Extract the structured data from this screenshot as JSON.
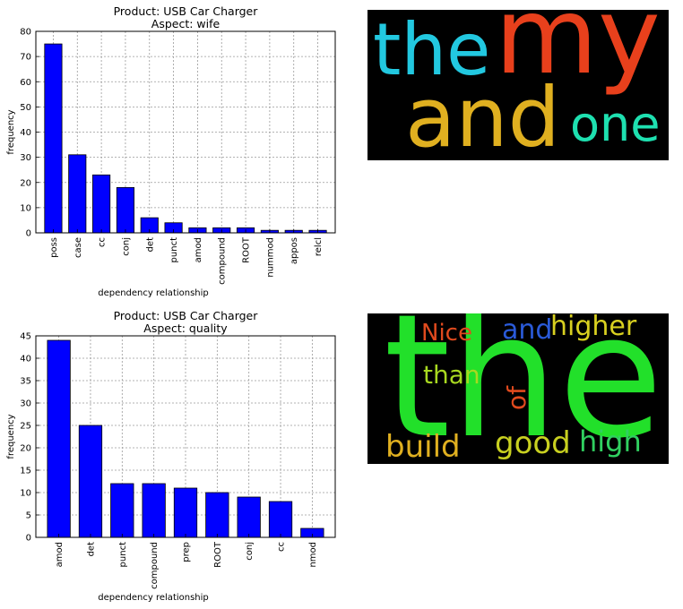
{
  "chart_data": [
    {
      "type": "bar",
      "title": "Product: USB Car Charger",
      "subtitle": "Aspect: wife",
      "xlabel": "dependency relationship",
      "ylabel": "frequency",
      "categories": [
        "poss",
        "case",
        "cc",
        "conj",
        "det",
        "punct",
        "amod",
        "compound",
        "ROOT",
        "nummod",
        "appos",
        "relcl"
      ],
      "values": [
        75,
        31,
        23,
        18,
        6,
        4,
        2,
        2,
        2,
        1,
        1,
        1
      ],
      "ylim": [
        0,
        80
      ],
      "yticks": [
        0,
        10,
        20,
        30,
        40,
        50,
        60,
        70,
        80
      ],
      "grid": true,
      "bar_color": "#0000ff"
    },
    {
      "type": "bar",
      "title": "Product: USB Car Charger",
      "subtitle": "Aspect: quality",
      "xlabel": "dependency relationship",
      "ylabel": "frequency",
      "categories": [
        "amod",
        "det",
        "punct",
        "compound",
        "prep",
        "ROOT",
        "conj",
        "cc",
        "nmod"
      ],
      "values": [
        44,
        25,
        12,
        12,
        11,
        10,
        9,
        8,
        2
      ],
      "ylim": [
        0,
        45
      ],
      "yticks": [
        0,
        5,
        10,
        15,
        20,
        25,
        30,
        35,
        40,
        45
      ],
      "grid": true,
      "bar_color": "#0000ff"
    }
  ],
  "wordclouds": [
    {
      "background": "#000000",
      "words": [
        {
          "text": "my",
          "color": "#e8401c"
        },
        {
          "text": "the",
          "color": "#22c8e0"
        },
        {
          "text": "and",
          "color": "#e0b020"
        },
        {
          "text": "one",
          "color": "#1ee0b0"
        }
      ]
    },
    {
      "background": "#000000",
      "words": [
        {
          "text": "the",
          "color": "#22e02a"
        },
        {
          "text": "Nice",
          "color": "#e04a1e"
        },
        {
          "text": "and",
          "color": "#2a5ad8"
        },
        {
          "text": "higher",
          "color": "#d8d020"
        },
        {
          "text": "than",
          "color": "#a8d820"
        },
        {
          "text": "of",
          "color": "#e04a1e"
        },
        {
          "text": "build",
          "color": "#e0b020"
        },
        {
          "text": "good",
          "color": "#c8d020"
        },
        {
          "text": "high",
          "color": "#30d060"
        }
      ]
    }
  ]
}
